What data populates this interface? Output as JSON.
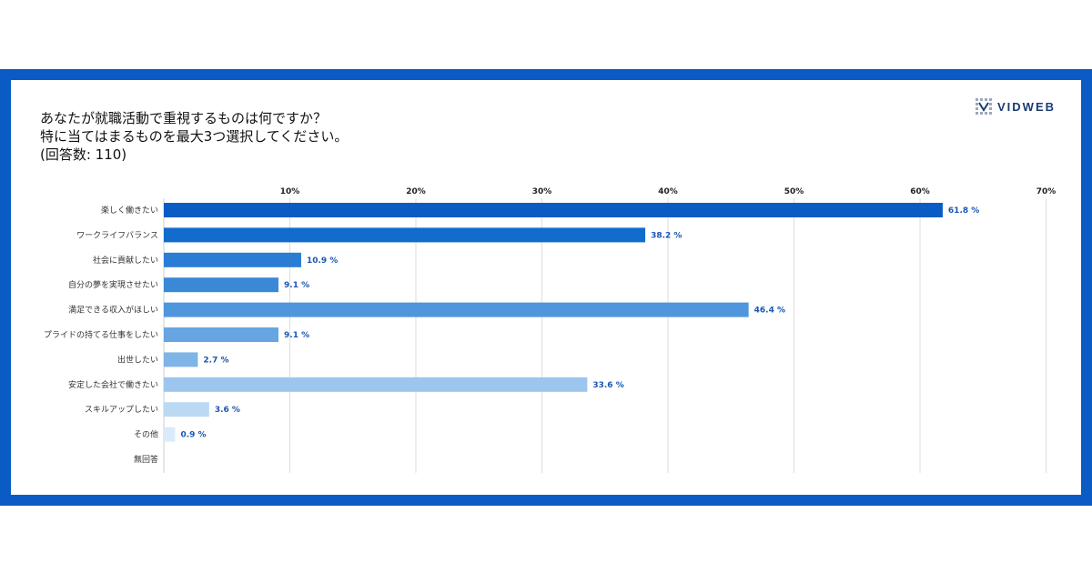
{
  "title": {
    "line1": "あなたが就職活動で重視するものは何ですか？",
    "line2": "特に当てはまるものを最大3つ選択してください。",
    "line3": "(回答数: 110)"
  },
  "logo": {
    "text": "VIDWEB",
    "icon": "grid-logo-icon"
  },
  "colors": {
    "frame": "#0a5bc4"
  },
  "chart_data": {
    "type": "bar",
    "orientation": "horizontal",
    "xlim": [
      0,
      70
    ],
    "x_ticks": [
      "10%",
      "20%",
      "30%",
      "40%",
      "50%",
      "60%",
      "70%"
    ],
    "x_tick_values": [
      10,
      20,
      30,
      40,
      50,
      60,
      70
    ],
    "grid": true,
    "categories": [
      "楽しく働きたい",
      "ワークライフバランス",
      "社会に貢献したい",
      "自分の夢を実現させたい",
      "満足できる収入がほしい",
      "プライドの持てる仕事をしたい",
      "出世したい",
      "安定した会社で働きたい",
      "スキルアップしたい",
      "その他",
      "無回答"
    ],
    "values": [
      61.8,
      38.2,
      10.9,
      9.1,
      46.4,
      9.1,
      2.7,
      33.6,
      3.6,
      0.9,
      null
    ],
    "value_labels": [
      "61.8 %",
      "38.2 %",
      "10.9 %",
      "9.1 %",
      "46.4 %",
      "9.1 %",
      "2.7 %",
      "33.6 %",
      "3.6 %",
      "0.9 %",
      ""
    ],
    "bar_colors": [
      "#0a5bc4",
      "#126ccc",
      "#2a7dd2",
      "#3a88d6",
      "#4f96dc",
      "#66a5e2",
      "#7fb4e7",
      "#9cc6ee",
      "#bcd9f4",
      "#dbeaf9",
      "#e8f1fb"
    ]
  }
}
